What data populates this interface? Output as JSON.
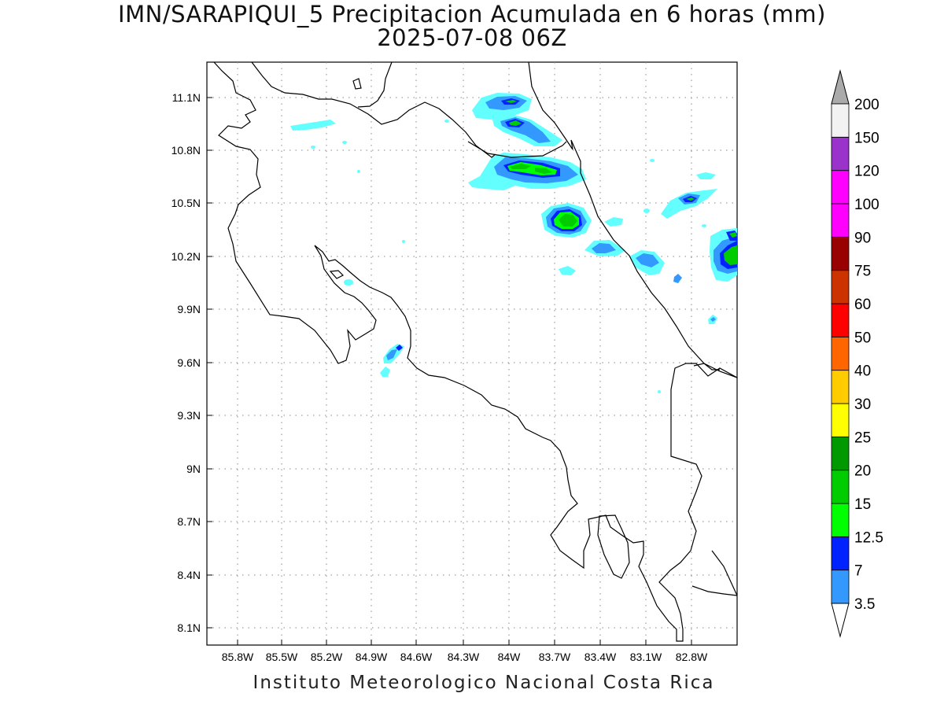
{
  "title": {
    "line1": "IMN/SARAPIQUI_5 Precipitacion Acumulada en 6 horas (mm)",
    "line2": "2025-07-08 06Z"
  },
  "footer": "Instituto Meteorologico Nacional Costa Rica",
  "map": {
    "lat_labels": [
      "11.1N",
      "10.8N",
      "10.5N",
      "10.2N",
      "9.9N",
      "9.6N",
      "9.3N",
      "9N",
      "8.7N",
      "8.4N",
      "8.1N"
    ],
    "lon_labels": [
      "85.8W",
      "85.5W",
      "85.2W",
      "84.9W",
      "84.6W",
      "84.3W",
      "84W",
      "83.7W",
      "83.4W",
      "83.1W",
      "82.8W"
    ],
    "grid": true
  },
  "colorbar": {
    "levels": [
      "3.5",
      "7",
      "12.5",
      "15",
      "20",
      "25",
      "30",
      "40",
      "50",
      "60",
      "75",
      "90",
      "100",
      "120",
      "150",
      "200"
    ],
    "colors": [
      "#63ffff",
      "#3399ff",
      "#0022ff",
      "#00ff00",
      "#00cc00",
      "#009900",
      "#ffff00",
      "#ffcc00",
      "#ff6600",
      "#ff0000",
      "#cc3300",
      "#990000",
      "#ff00ff",
      "#ff00ff",
      "#9933cc",
      "#f2f2f2"
    ],
    "top_color": "#aaaaaa",
    "bottom_color": "#ffffff"
  }
}
